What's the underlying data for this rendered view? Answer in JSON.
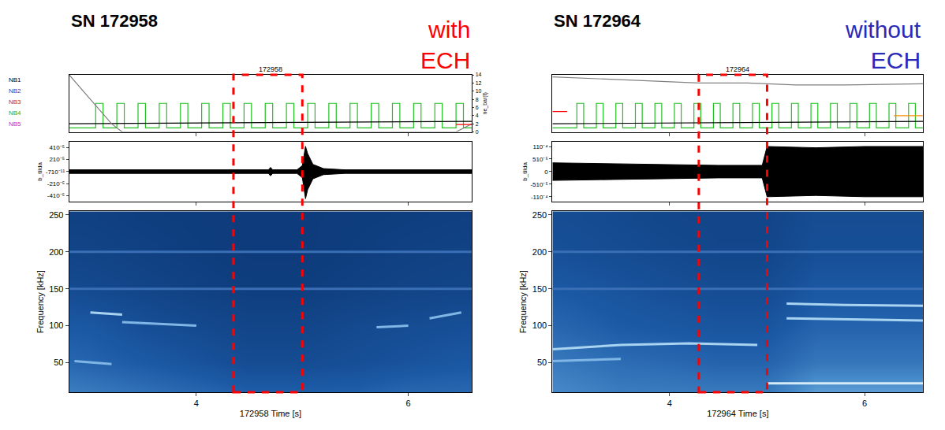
{
  "chart_data": [
    {
      "type": "composite",
      "title": "SN 172958",
      "subtitle": "172958",
      "label": {
        "text": "with ECH",
        "color": "#ff0000"
      },
      "highlight": {
        "x0": 4.35,
        "x1": 5.0,
        "color": "#ff0000",
        "line_style": "dash"
      },
      "xlim": [
        2.8,
        6.6
      ],
      "xticks": [
        4,
        6
      ],
      "xlabel": "172958 Time [s]",
      "beams": {
        "ylim": [
          0,
          14
        ],
        "yticks": [
          0,
          2,
          4,
          6,
          8,
          10,
          12,
          14
        ],
        "ylabel2": "ne_bar(t)",
        "labels": [
          {
            "text": "NB1",
            "color": "#000000"
          },
          {
            "text": "NB2",
            "color": "#3333cc"
          },
          {
            "text": "NB3",
            "color": "#cc2222"
          },
          {
            "text": "NB4",
            "color": "#22aa22"
          },
          {
            "text": "NB5",
            "color": "#cc22cc"
          }
        ],
        "series": [
          {
            "color": "#22c022",
            "line_style": "step",
            "x": [
              2.8,
              3.05,
              3.12,
              3.25,
              3.32,
              3.45,
              3.52,
              3.65,
              3.72,
              3.85,
              3.92,
              4.05,
              4.12,
              4.25,
              4.32,
              4.45,
              4.52,
              4.65,
              4.72,
              4.85,
              4.92,
              5.05,
              5.12,
              5.25,
              5.32,
              5.45,
              5.52,
              5.65,
              5.72,
              5.85,
              5.92,
              6.05,
              6.12,
              6.25,
              6.32,
              6.45,
              6.52,
              6.6
            ],
            "values": [
              1,
              7,
              1,
              7,
              1,
              7,
              1,
              7,
              1,
              7,
              1,
              7,
              1,
              7,
              1,
              7,
              1,
              7,
              1,
              7,
              1,
              7,
              1,
              7,
              1,
              7,
              1,
              7,
              1,
              7,
              1,
              7,
              1,
              7,
              1,
              7,
              1,
              1
            ]
          },
          {
            "color": "#000000",
            "line_style": "solid",
            "x": [
              2.8,
              6.6
            ],
            "values": [
              2,
              2.6
            ]
          },
          {
            "color": "#808080",
            "line_style": "solid",
            "x": [
              2.8,
              3.0,
              3.2,
              3.3,
              6.45,
              6.6
            ],
            "values": [
              14,
              8,
              2,
              0,
              0,
              2
            ]
          },
          {
            "color": "#ff0000",
            "line_style": "solid",
            "x": [
              6.45,
              6.6
            ],
            "values": [
              1.8,
              1.8
            ]
          }
        ]
      },
      "signal": {
        "ylabel": "b_tilda",
        "ylim": [
          -5e-05,
          5e-05
        ],
        "yticks": [
          {
            "value": 4e-05,
            "label": "410⁻⁵"
          },
          {
            "value": 2e-05,
            "label": "210⁻⁵"
          },
          {
            "value": -7e-11,
            "label": "-710⁻¹¹"
          },
          {
            "value": -2e-05,
            "label": "-210⁻⁵"
          },
          {
            "value": -4e-05,
            "label": "-410⁻⁵"
          }
        ],
        "envelope": {
          "color": "#000000",
          "x": [
            2.8,
            4.0,
            4.68,
            4.7,
            4.72,
            4.95,
            5.0,
            5.03,
            5.05,
            5.1,
            5.2,
            5.4,
            6.6
          ],
          "upper": [
            3e-06,
            3e-06,
            3e-06,
            7e-06,
            3e-06,
            3e-06,
            1e-05,
            4.2e-05,
            3e-05,
            1.2e-05,
            5e-06,
            3e-06,
            3e-06
          ],
          "lower": [
            -3e-06,
            -3e-06,
            -3e-06,
            -7e-06,
            -3e-06,
            -3e-06,
            -1e-05,
            -4.5e-05,
            -3e-05,
            -1.2e-05,
            -5e-06,
            -3e-06,
            -3e-06
          ]
        }
      },
      "spectrogram": {
        "ylabel": "Frequency [kHz]",
        "ylim": [
          10,
          255
        ],
        "yticks": [
          50,
          100,
          150,
          200,
          250
        ],
        "zlim": [
          0,
          1
        ],
        "x": [
          2.5,
          3.0,
          3.5,
          4.0,
          4.5,
          5.0,
          5.5,
          6.0,
          6.5,
          7.0
        ],
        "y": [
          0,
          50,
          100,
          150,
          200,
          250,
          300
        ],
        "cells": [
          [
            0.55,
            0.5,
            0.45,
            0.4,
            0.35,
            0.35,
            0.35,
            0.4,
            0.4,
            0.4
          ],
          [
            0.4,
            0.35,
            0.3,
            0.25,
            0.2,
            0.2,
            0.22,
            0.25,
            0.28,
            0.28
          ],
          [
            0.3,
            0.28,
            0.22,
            0.18,
            0.15,
            0.15,
            0.18,
            0.2,
            0.22,
            0.22
          ],
          [
            0.2,
            0.18,
            0.15,
            0.12,
            0.1,
            0.1,
            0.12,
            0.14,
            0.15,
            0.15
          ],
          [
            0.15,
            0.14,
            0.12,
            0.1,
            0.08,
            0.08,
            0.1,
            0.12,
            0.13,
            0.13
          ],
          [
            0.12,
            0.12,
            0.1,
            0.09,
            0.08,
            0.08,
            0.09,
            0.1,
            0.11,
            0.11
          ],
          [
            0.12,
            0.12,
            0.1,
            0.09,
            0.08,
            0.08,
            0.09,
            0.1,
            0.11,
            0.11
          ]
        ],
        "modes": [
          {
            "color": "#3a6fb5",
            "x": [
              2.8,
              6.6
            ],
            "values": [
              200,
              200
            ]
          },
          {
            "color": "#3a6fb5",
            "x": [
              2.8,
              6.6
            ],
            "values": [
              150,
              150
            ]
          },
          {
            "color": "#a8d4f2",
            "x": [
              3.0,
              3.3
            ],
            "values": [
              118,
              115
            ]
          },
          {
            "color": "#7fb6e6",
            "x": [
              3.3,
              4.0
            ],
            "values": [
              105,
              100
            ]
          },
          {
            "color": "#7fb6e6",
            "x": [
              2.85,
              3.2
            ],
            "values": [
              52,
              48
            ]
          },
          {
            "color": "#7fb6e6",
            "x": [
              5.7,
              6.0
            ],
            "values": [
              98,
              100
            ]
          },
          {
            "color": "#7fb6e6",
            "x": [
              6.2,
              6.5
            ],
            "values": [
              110,
              118
            ]
          }
        ]
      }
    },
    {
      "type": "composite",
      "title": "SN 172964",
      "subtitle": "172964",
      "label": {
        "text": "without ECH",
        "color": "#2a2ab8"
      },
      "highlight": {
        "x0": 4.3,
        "x1": 5.0,
        "color": "#ff0000",
        "line_style": "dash"
      },
      "xlim": [
        2.8,
        6.6
      ],
      "xticks": [
        4,
        6
      ],
      "xlabel": "172964 Time [s]",
      "beams": {
        "ylim": [
          0,
          14
        ],
        "tick_labels": false,
        "series": [
          {
            "color": "#22c022",
            "line_style": "step",
            "x": [
              2.8,
              3.05,
              3.12,
              3.25,
              3.32,
              3.45,
              3.52,
              3.65,
              3.72,
              3.85,
              3.92,
              4.05,
              4.12,
              4.25,
              4.32,
              4.45,
              4.52,
              4.65,
              4.72,
              4.85,
              4.92,
              5.05,
              5.12,
              5.25,
              5.32,
              5.45,
              5.52,
              5.65,
              5.72,
              5.85,
              5.92,
              6.05,
              6.12,
              6.25,
              6.32,
              6.45,
              6.52,
              6.6
            ],
            "values": [
              1,
              7,
              1,
              7,
              1,
              7,
              1,
              7,
              1,
              7,
              1,
              7,
              1,
              7,
              1,
              7,
              1,
              7,
              1,
              7,
              1,
              7,
              1,
              7,
              1,
              7,
              1,
              7,
              1,
              7,
              1,
              7,
              1,
              7,
              1,
              7,
              1,
              1
            ]
          },
          {
            "color": "#000000",
            "line_style": "solid",
            "x": [
              2.8,
              6.6
            ],
            "values": [
              2,
              2.6
            ]
          },
          {
            "color": "#808080",
            "line_style": "solid",
            "x": [
              2.8,
              3.3,
              3.8,
              4.3,
              4.8,
              5.3,
              5.8,
              6.6
            ],
            "values": [
              13.5,
              13,
              12.5,
              12,
              12,
              11.5,
              11.5,
              11.8
            ]
          },
          {
            "color": "#ff8c00",
            "line_style": "solid",
            "x": [
              6.3,
              6.6
            ],
            "values": [
              4,
              4
            ]
          },
          {
            "color": "#ff0000",
            "line_style": "solid",
            "x": [
              2.8,
              2.95
            ],
            "values": [
              5,
              5
            ]
          }
        ]
      },
      "signal": {
        "ylabel": "b_tilda",
        "ylim": [
          -0.00012,
          0.00012
        ],
        "yticks": [
          {
            "value": 0.0001,
            "label": "110⁻⁴"
          },
          {
            "value": 5e-05,
            "label": "510⁻⁵"
          },
          0,
          {
            "value": -5e-05,
            "label": "-510⁻⁵"
          },
          {
            "value": -0.0001,
            "label": "-110⁻⁴"
          }
        ],
        "envelope": {
          "color": "#000000",
          "x": [
            2.8,
            3.5,
            4.5,
            4.95,
            5.0,
            5.5,
            6.0,
            6.6
          ],
          "upper": [
            3.5e-05,
            3e-05,
            2.5e-05,
            2.5e-05,
            0.0001,
            9.5e-05,
            0.0001,
            0.0001
          ],
          "lower": [
            -3.5e-05,
            -3e-05,
            -2.5e-05,
            -2.5e-05,
            -0.0001,
            -9.5e-05,
            -0.0001,
            -0.0001
          ]
        }
      },
      "spectrogram": {
        "ylabel": "Frequency [kHz]",
        "ylim": [
          10,
          255
        ],
        "yticks": [
          50,
          100,
          150,
          200,
          250
        ],
        "zlim": [
          0,
          1
        ],
        "x": [
          2.5,
          3.0,
          3.5,
          4.0,
          4.5,
          5.0,
          5.5,
          6.0,
          6.5,
          7.0
        ],
        "y": [
          0,
          50,
          100,
          150,
          200,
          250,
          300
        ],
        "cells": [
          [
            0.6,
            0.55,
            0.5,
            0.5,
            0.5,
            0.5,
            0.7,
            0.7,
            0.7,
            0.7
          ],
          [
            0.5,
            0.45,
            0.4,
            0.38,
            0.35,
            0.35,
            0.45,
            0.45,
            0.45,
            0.45
          ],
          [
            0.4,
            0.35,
            0.3,
            0.28,
            0.26,
            0.26,
            0.35,
            0.35,
            0.35,
            0.35
          ],
          [
            0.3,
            0.28,
            0.25,
            0.22,
            0.2,
            0.2,
            0.28,
            0.28,
            0.28,
            0.28
          ],
          [
            0.25,
            0.22,
            0.2,
            0.18,
            0.16,
            0.16,
            0.22,
            0.22,
            0.22,
            0.22
          ],
          [
            0.2,
            0.2,
            0.18,
            0.16,
            0.15,
            0.15,
            0.2,
            0.2,
            0.2,
            0.2
          ],
          [
            0.2,
            0.2,
            0.18,
            0.16,
            0.15,
            0.15,
            0.2,
            0.2,
            0.2,
            0.2
          ]
        ],
        "modes": [
          {
            "color": "#3a6fb5",
            "x": [
              2.8,
              6.6
            ],
            "values": [
              200,
              200
            ]
          },
          {
            "color": "#3a6fb5",
            "x": [
              2.8,
              6.6
            ],
            "values": [
              150,
              150
            ]
          },
          {
            "color": "#a8d4f2",
            "x": [
              2.8,
              3.5,
              4.2,
              4.9
            ],
            "values": [
              68,
              74,
              76,
              74
            ]
          },
          {
            "color": "#7fb6e6",
            "x": [
              2.8,
              3.5
            ],
            "values": [
              52,
              55
            ]
          },
          {
            "color": "#a8d4f2",
            "x": [
              5.2,
              5.8,
              6.6
            ],
            "values": [
              130,
              128,
              127
            ]
          },
          {
            "color": "#a8d4f2",
            "x": [
              5.2,
              6.0,
              6.6
            ],
            "values": [
              110,
              108,
              107
            ]
          },
          {
            "color": "#d6ebf8",
            "x": [
              5.0,
              6.6
            ],
            "values": [
              22,
              22
            ]
          }
        ]
      }
    }
  ]
}
